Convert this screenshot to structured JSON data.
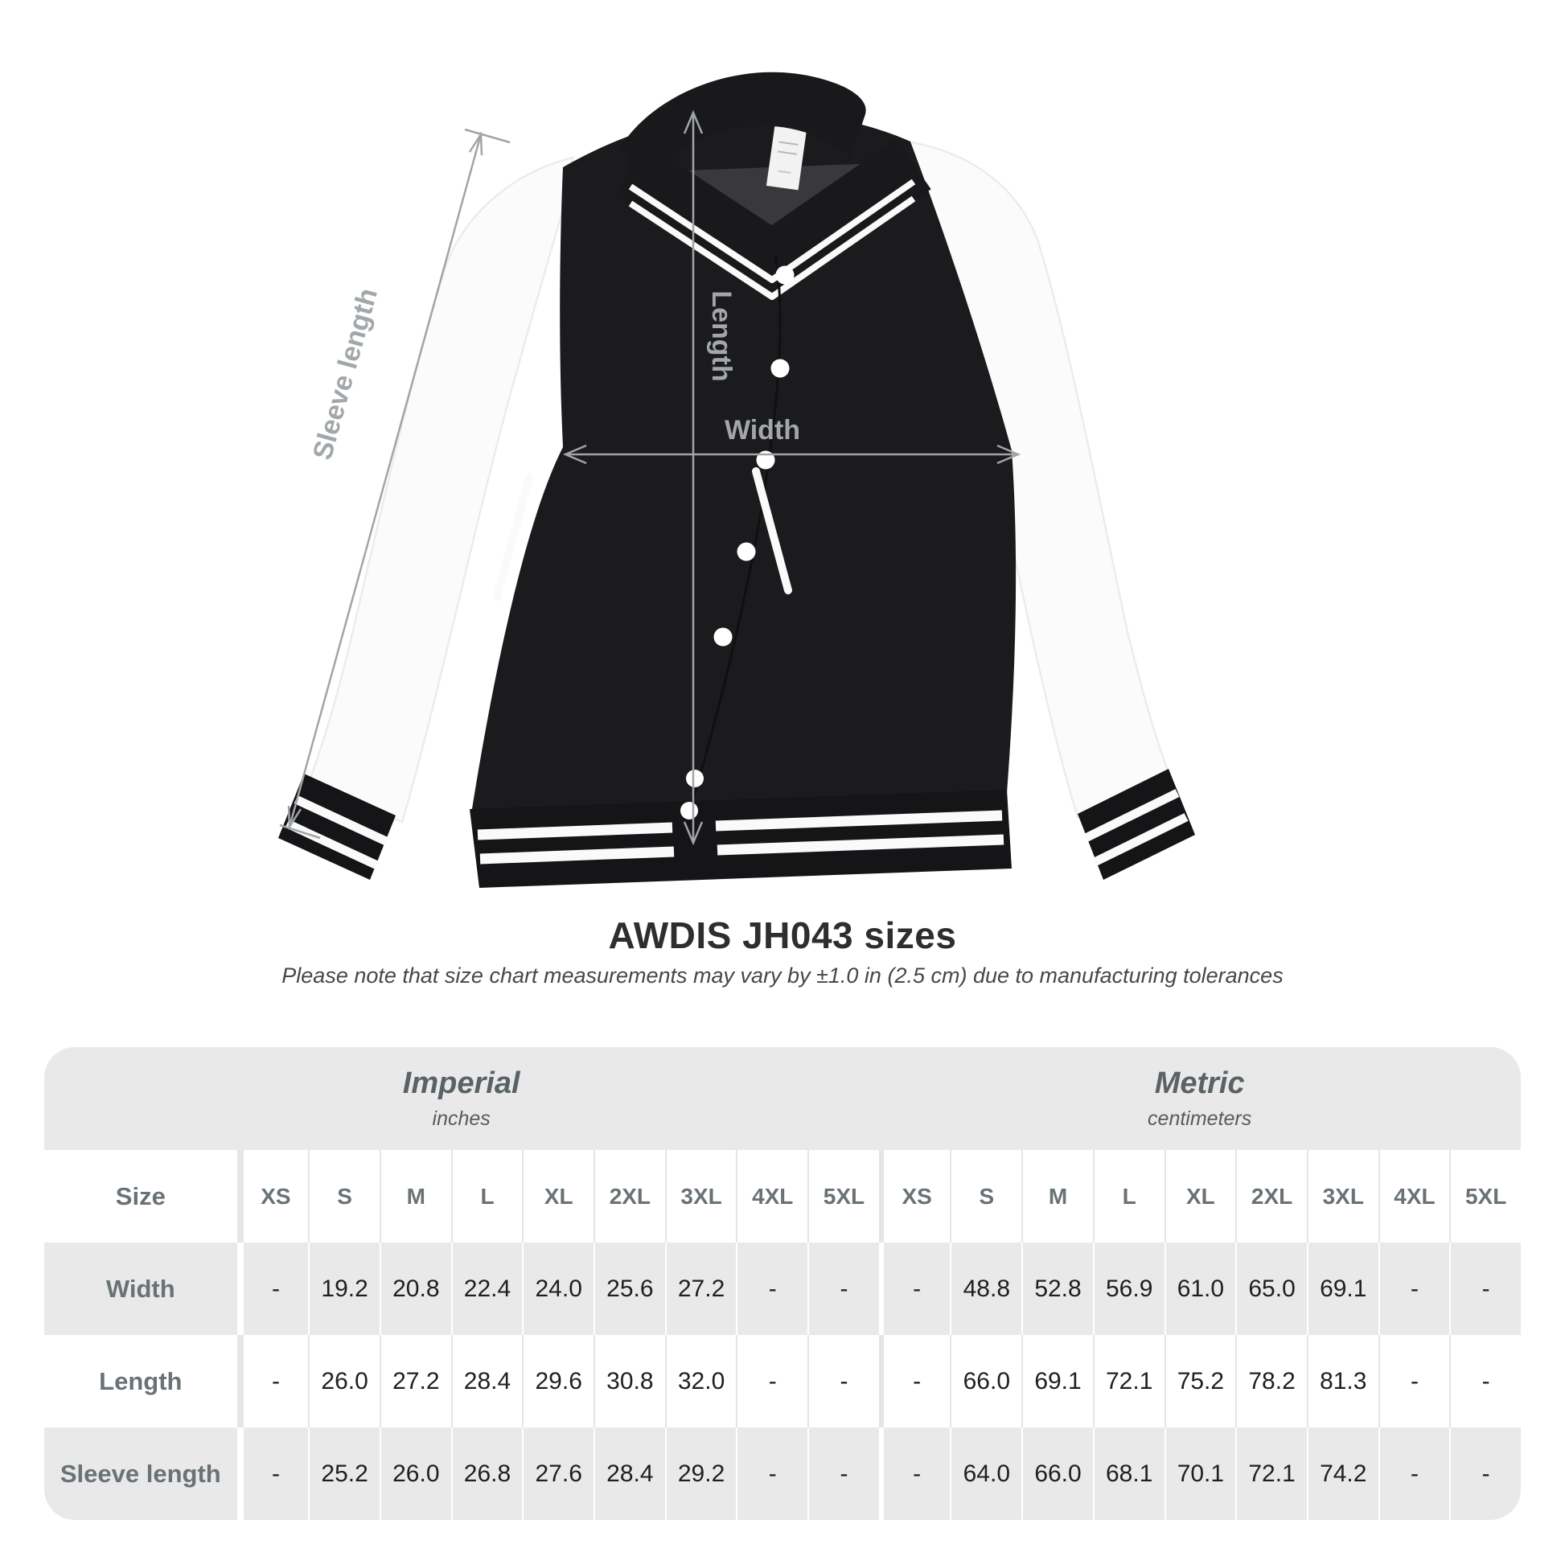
{
  "illustration": {
    "annotations": {
      "length": "Length",
      "width": "Width",
      "sleeve_length": "Sleeve length"
    }
  },
  "heading": {
    "title": "AWDIS JH043 sizes",
    "subtitle": "Please note that size chart measurements may vary by ±1.0 in (2.5 cm) due to manufacturing tolerances"
  },
  "table": {
    "sections": [
      {
        "label": "Imperial",
        "sublabel": "inches"
      },
      {
        "label": "Metric",
        "sublabel": "centimeters"
      }
    ],
    "size_header": "Size",
    "sizes": [
      "XS",
      "S",
      "M",
      "L",
      "XL",
      "2XL",
      "3XL",
      "4XL",
      "5XL"
    ],
    "rows": [
      {
        "label": "Width",
        "imperial": [
          "-",
          "19.2",
          "20.8",
          "22.4",
          "24.0",
          "25.6",
          "27.2",
          "-",
          "-"
        ],
        "metric": [
          "-",
          "48.8",
          "52.8",
          "56.9",
          "61.0",
          "65.0",
          "69.1",
          "-",
          "-"
        ]
      },
      {
        "label": "Length",
        "imperial": [
          "-",
          "26.0",
          "27.2",
          "28.4",
          "29.6",
          "30.8",
          "32.0",
          "-",
          "-"
        ],
        "metric": [
          "-",
          "66.0",
          "69.1",
          "72.1",
          "75.2",
          "78.2",
          "81.3",
          "-",
          "-"
        ]
      },
      {
        "label": "Sleeve length",
        "imperial": [
          "-",
          "25.2",
          "26.0",
          "26.8",
          "27.6",
          "28.4",
          "29.2",
          "-",
          "-"
        ],
        "metric": [
          "-",
          "64.0",
          "66.0",
          "68.1",
          "70.1",
          "72.1",
          "74.2",
          "-",
          "-"
        ]
      }
    ]
  },
  "colors": {
    "table_gray": "#e9e9e9",
    "jacket_black": "#1b1b1d",
    "sleeve_white": "#fcfcfc",
    "annotation_gray": "#9aa0a4"
  }
}
